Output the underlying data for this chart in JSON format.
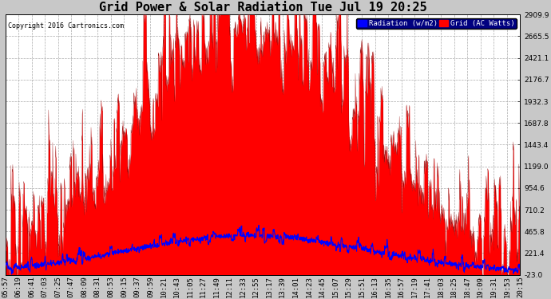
{
  "title": "Grid Power & Solar Radiation Tue Jul 19 20:25",
  "copyright": "Copyright 2016 Cartronics.com",
  "legend_labels": [
    "Radiation (w/m2)",
    "Grid (AC Watts)"
  ],
  "y_ticks": [
    -23.0,
    221.4,
    465.8,
    710.2,
    954.6,
    1199.0,
    1443.4,
    1687.8,
    1932.3,
    2176.7,
    2421.1,
    2665.5,
    2909.9
  ],
  "ylim": [
    -23.0,
    2909.9
  ],
  "fig_bg_color": "#c8c8c8",
  "plot_bg_color": "#ffffff",
  "grid_color": "#cccccc",
  "radiation_fill_color": "red",
  "grid_line_color": "blue",
  "title_fontsize": 11,
  "tick_fontsize": 6.5,
  "x_labels": [
    "05:57",
    "06:19",
    "06:41",
    "07:03",
    "07:25",
    "07:47",
    "08:09",
    "08:31",
    "08:53",
    "09:15",
    "09:37",
    "09:59",
    "10:21",
    "10:43",
    "11:05",
    "11:27",
    "11:49",
    "12:11",
    "12:33",
    "12:55",
    "13:17",
    "13:39",
    "14:01",
    "14:23",
    "14:45",
    "15:07",
    "15:29",
    "15:51",
    "16:13",
    "16:35",
    "16:57",
    "17:19",
    "17:41",
    "18:03",
    "18:25",
    "18:47",
    "19:09",
    "19:31",
    "19:53",
    "20:15"
  ]
}
